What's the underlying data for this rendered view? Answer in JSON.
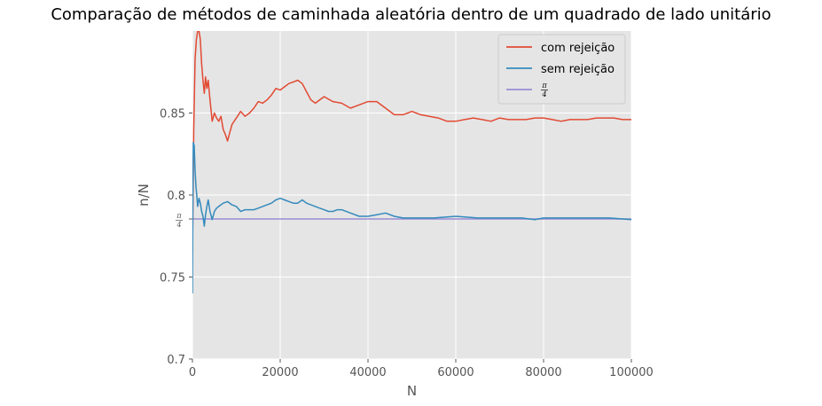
{
  "chart_data": {
    "type": "line",
    "title": "Comparação de métodos de caminhada aleatória dentro de um quadrado de lado unitário",
    "xlabel": "N",
    "ylabel": "n/N",
    "xlim": [
      0,
      100000
    ],
    "ylim": [
      0.7,
      0.9
    ],
    "x_ticks": [
      "0",
      "20000",
      "40000",
      "60000",
      "80000",
      "100000"
    ],
    "y_ticks": [
      "0.7",
      "0.75",
      "0.8",
      "0.85"
    ],
    "pi_tick": {
      "numerator": "π",
      "denominator": "4",
      "value": 0.7854
    },
    "grid": true,
    "legend_position": "top-right",
    "series": [
      {
        "name": "com rejeição",
        "color": "#E24A33",
        "points": [
          [
            0,
            0.766
          ],
          [
            300,
            0.84
          ],
          [
            600,
            0.883
          ],
          [
            900,
            0.895
          ],
          [
            1200,
            0.9
          ],
          [
            1500,
            0.9
          ],
          [
            1800,
            0.895
          ],
          [
            2100,
            0.88
          ],
          [
            2400,
            0.87
          ],
          [
            2700,
            0.862
          ],
          [
            3000,
            0.872
          ],
          [
            3300,
            0.865
          ],
          [
            3600,
            0.87
          ],
          [
            3900,
            0.861
          ],
          [
            4200,
            0.853
          ],
          [
            4500,
            0.845
          ],
          [
            5000,
            0.85
          ],
          [
            5500,
            0.847
          ],
          [
            6000,
            0.845
          ],
          [
            6500,
            0.848
          ],
          [
            7000,
            0.84
          ],
          [
            7500,
            0.837
          ],
          [
            8000,
            0.833
          ],
          [
            8500,
            0.838
          ],
          [
            9000,
            0.843
          ],
          [
            10000,
            0.847
          ],
          [
            11000,
            0.851
          ],
          [
            12000,
            0.848
          ],
          [
            13000,
            0.85
          ],
          [
            14000,
            0.853
          ],
          [
            15000,
            0.857
          ],
          [
            16000,
            0.856
          ],
          [
            17000,
            0.858
          ],
          [
            18000,
            0.861
          ],
          [
            19000,
            0.865
          ],
          [
            20000,
            0.864
          ],
          [
            21000,
            0.866
          ],
          [
            22000,
            0.868
          ],
          [
            23000,
            0.869
          ],
          [
            24000,
            0.87
          ],
          [
            25000,
            0.868
          ],
          [
            26000,
            0.863
          ],
          [
            27000,
            0.858
          ],
          [
            28000,
            0.856
          ],
          [
            30000,
            0.86
          ],
          [
            32000,
            0.857
          ],
          [
            34000,
            0.856
          ],
          [
            36000,
            0.853
          ],
          [
            38000,
            0.855
          ],
          [
            40000,
            0.857
          ],
          [
            42000,
            0.857
          ],
          [
            44000,
            0.853
          ],
          [
            46000,
            0.849
          ],
          [
            48000,
            0.849
          ],
          [
            50000,
            0.851
          ],
          [
            52000,
            0.849
          ],
          [
            54000,
            0.848
          ],
          [
            56000,
            0.847
          ],
          [
            58000,
            0.845
          ],
          [
            60000,
            0.845
          ],
          [
            62000,
            0.846
          ],
          [
            64000,
            0.847
          ],
          [
            66000,
            0.846
          ],
          [
            68000,
            0.845
          ],
          [
            70000,
            0.847
          ],
          [
            72000,
            0.846
          ],
          [
            74000,
            0.846
          ],
          [
            76000,
            0.846
          ],
          [
            78000,
            0.847
          ],
          [
            80000,
            0.847
          ],
          [
            82000,
            0.846
          ],
          [
            84000,
            0.845
          ],
          [
            86000,
            0.846
          ],
          [
            88000,
            0.846
          ],
          [
            90000,
            0.846
          ],
          [
            92000,
            0.847
          ],
          [
            94000,
            0.847
          ],
          [
            96000,
            0.847
          ],
          [
            98000,
            0.846
          ],
          [
            100000,
            0.846
          ]
        ]
      },
      {
        "name": "sem rejeição",
        "color": "#348ABD",
        "points": [
          [
            0,
            0.74
          ],
          [
            100,
            0.8
          ],
          [
            200,
            0.832
          ],
          [
            400,
            0.83
          ],
          [
            600,
            0.815
          ],
          [
            800,
            0.805
          ],
          [
            1000,
            0.8
          ],
          [
            1200,
            0.793
          ],
          [
            1500,
            0.798
          ],
          [
            1800,
            0.795
          ],
          [
            2100,
            0.79
          ],
          [
            2400,
            0.787
          ],
          [
            2700,
            0.781
          ],
          [
            3000,
            0.788
          ],
          [
            3300,
            0.793
          ],
          [
            3600,
            0.797
          ],
          [
            4000,
            0.79
          ],
          [
            4500,
            0.785
          ],
          [
            5000,
            0.79
          ],
          [
            5500,
            0.792
          ],
          [
            6000,
            0.793
          ],
          [
            7000,
            0.795
          ],
          [
            8000,
            0.796
          ],
          [
            9000,
            0.794
          ],
          [
            10000,
            0.793
          ],
          [
            11000,
            0.79
          ],
          [
            12000,
            0.791
          ],
          [
            13000,
            0.791
          ],
          [
            14000,
            0.791
          ],
          [
            15000,
            0.792
          ],
          [
            16000,
            0.793
          ],
          [
            17000,
            0.794
          ],
          [
            18000,
            0.795
          ],
          [
            19000,
            0.797
          ],
          [
            20000,
            0.798
          ],
          [
            21000,
            0.797
          ],
          [
            22000,
            0.796
          ],
          [
            23000,
            0.795
          ],
          [
            24000,
            0.795
          ],
          [
            25000,
            0.797
          ],
          [
            26000,
            0.795
          ],
          [
            27000,
            0.794
          ],
          [
            28000,
            0.793
          ],
          [
            29000,
            0.792
          ],
          [
            30000,
            0.791
          ],
          [
            31000,
            0.79
          ],
          [
            32000,
            0.79
          ],
          [
            33000,
            0.791
          ],
          [
            34000,
            0.791
          ],
          [
            36000,
            0.789
          ],
          [
            38000,
            0.787
          ],
          [
            40000,
            0.787
          ],
          [
            42000,
            0.788
          ],
          [
            44000,
            0.789
          ],
          [
            46000,
            0.787
          ],
          [
            48000,
            0.786
          ],
          [
            50000,
            0.786
          ],
          [
            55000,
            0.786
          ],
          [
            60000,
            0.787
          ],
          [
            65000,
            0.786
          ],
          [
            70000,
            0.786
          ],
          [
            75000,
            0.786
          ],
          [
            78000,
            0.785
          ],
          [
            80000,
            0.786
          ],
          [
            85000,
            0.786
          ],
          [
            90000,
            0.786
          ],
          [
            95000,
            0.786
          ],
          [
            100000,
            0.785
          ]
        ]
      },
      {
        "name": "π/4",
        "color": "#988ED5",
        "points": [
          [
            0,
            0.7854
          ],
          [
            100000,
            0.7854
          ]
        ]
      }
    ]
  }
}
